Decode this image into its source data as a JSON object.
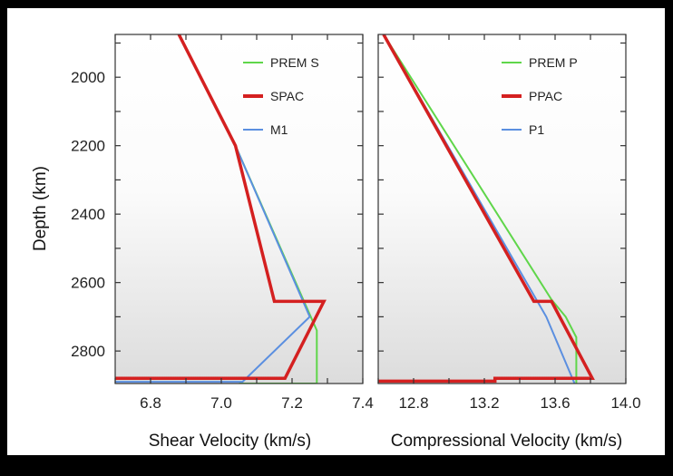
{
  "chart_data": [
    {
      "type": "line",
      "title": "",
      "xlabel": "Shear Velocity (km/s)",
      "ylabel": "Depth (km)",
      "xlim": [
        6.7,
        7.4
      ],
      "ylim": [
        2895,
        1875
      ],
      "y_inverted": true,
      "xticks": [
        "6.8",
        "7.0",
        "7.2",
        "7.4"
      ],
      "xtick_values": [
        6.8,
        7.0,
        7.2,
        7.4
      ],
      "yticks": [
        "2000",
        "2200",
        "2400",
        "2600",
        "2800"
      ],
      "ytick_values": [
        2000,
        2200,
        2400,
        2600,
        2800
      ],
      "grid": false,
      "legend_position": "top-right",
      "series": [
        {
          "name": "PREM S",
          "color": "#5fd64a",
          "points": [
            [
              6.88,
              1875
            ],
            [
              7.04,
              2200
            ],
            [
              7.27,
              2740
            ],
            [
              7.27,
              2895
            ],
            [
              7.05,
              2895
            ]
          ]
        },
        {
          "name": "SPAC",
          "color": "#d42020",
          "points": [
            [
              6.88,
              1875
            ],
            [
              7.04,
              2200
            ],
            [
              7.15,
              2655
            ],
            [
              7.29,
              2655
            ],
            [
              7.18,
              2880
            ],
            [
              6.7,
              2880
            ]
          ]
        },
        {
          "name": "M1",
          "color": "#5b8fe0",
          "points": [
            [
              6.88,
              1875
            ],
            [
              7.04,
              2200
            ],
            [
              7.25,
              2700
            ],
            [
              7.06,
              2890
            ],
            [
              6.7,
              2890
            ]
          ]
        }
      ]
    },
    {
      "type": "line",
      "title": "",
      "xlabel": "Compressional Velocity (km/s)",
      "ylabel": "",
      "xlim": [
        12.6,
        14.0
      ],
      "ylim": [
        2895,
        1875
      ],
      "y_inverted": true,
      "xticks": [
        "12.8",
        "13.2",
        "13.6",
        "14.0"
      ],
      "xtick_values": [
        12.8,
        13.2,
        13.6,
        14.0
      ],
      "yticks": [],
      "ytick_values": [
        2000,
        2200,
        2400,
        2600,
        2800
      ],
      "grid": false,
      "legend_position": "top-right",
      "series": [
        {
          "name": "PREM P",
          "color": "#5fd64a",
          "points": [
            [
              12.63,
              1875
            ],
            [
              13.58,
              2650
            ],
            [
              13.66,
              2700
            ],
            [
              13.72,
              2760
            ],
            [
              13.72,
              2895
            ]
          ]
        },
        {
          "name": "PPAC",
          "color": "#d42020",
          "points": [
            [
              12.63,
              1875
            ],
            [
              13.48,
              2655
            ],
            [
              13.58,
              2655
            ],
            [
              13.81,
              2880
            ],
            [
              13.26,
              2880
            ],
            [
              13.26,
              2888
            ],
            [
              12.6,
              2888
            ]
          ]
        },
        {
          "name": "P1",
          "color": "#5b8fe0",
          "points": [
            [
              12.63,
              1875
            ],
            [
              13.55,
              2700
            ],
            [
              13.71,
              2895
            ]
          ]
        }
      ]
    }
  ]
}
